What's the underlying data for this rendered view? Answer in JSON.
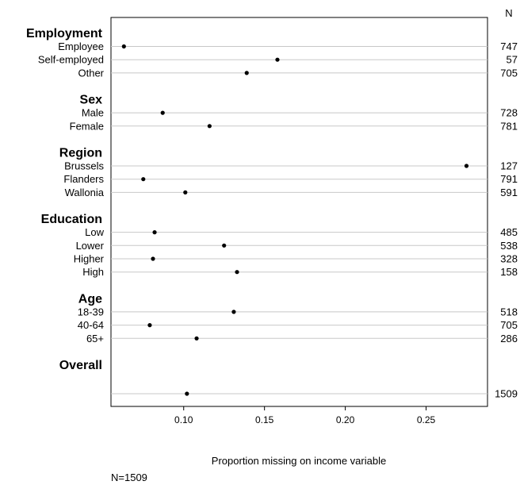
{
  "chart_data": {
    "type": "scatter",
    "xlabel": "Proportion missing on income variable",
    "note": "N=1509",
    "n_header": "N",
    "xlim": [
      0.055,
      0.288
    ],
    "xticks": [
      0.1,
      0.15,
      0.2,
      0.25
    ],
    "xtick_labels": [
      "0.10",
      "0.15",
      "0.20",
      "0.25"
    ],
    "grid": "horizontal",
    "groups": [
      {
        "name": "Employment",
        "items": [
          {
            "label": "Employee",
            "value": 0.063,
            "n": "747"
          },
          {
            "label": "Self-employed",
            "value": 0.158,
            "n": "57"
          },
          {
            "label": "Other",
            "value": 0.139,
            "n": "705"
          }
        ]
      },
      {
        "name": "Sex",
        "items": [
          {
            "label": "Male",
            "value": 0.087,
            "n": "728"
          },
          {
            "label": "Female",
            "value": 0.116,
            "n": "781"
          }
        ]
      },
      {
        "name": "Region",
        "items": [
          {
            "label": "Brussels",
            "value": 0.275,
            "n": "127"
          },
          {
            "label": "Flanders",
            "value": 0.075,
            "n": "791"
          },
          {
            "label": "Wallonia",
            "value": 0.101,
            "n": "591"
          }
        ]
      },
      {
        "name": "Education",
        "items": [
          {
            "label": "Low",
            "value": 0.082,
            "n": "485"
          },
          {
            "label": "Lower",
            "value": 0.125,
            "n": "538"
          },
          {
            "label": "Higher",
            "value": 0.081,
            "n": "328"
          },
          {
            "label": "High",
            "value": 0.133,
            "n": "158"
          }
        ]
      },
      {
        "name": "Age",
        "items": [
          {
            "label": "18-39",
            "value": 0.131,
            "n": "518"
          },
          {
            "label": "40-64",
            "value": 0.079,
            "n": "705"
          },
          {
            "label": "65+",
            "value": 0.108,
            "n": "286"
          }
        ]
      },
      {
        "name": "Overall",
        "items": [
          {
            "label": "",
            "value": 0.102,
            "n": "1509"
          }
        ]
      }
    ]
  }
}
